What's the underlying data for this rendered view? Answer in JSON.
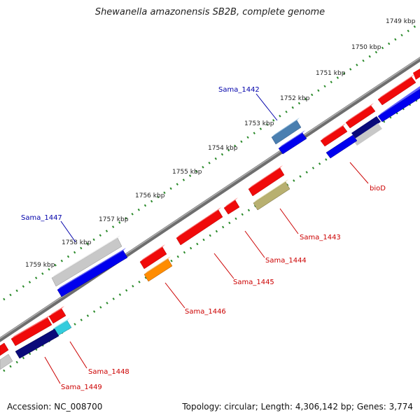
{
  "title": "Shewanella amazonensis SB2B, complete genome",
  "footer": {
    "accession": "Accession: NC_008700",
    "topology": "Topology: circular; Length: 4,306,142 bp; Genes: 3,774"
  },
  "ticks": [
    {
      "label": "1749 kbp"
    },
    {
      "label": "1750 kbp"
    },
    {
      "label": "1751 kbp"
    },
    {
      "label": "1752 kbp"
    },
    {
      "label": "1753 kbp"
    },
    {
      "label": "1754 kbp"
    },
    {
      "label": "1755 kbp"
    },
    {
      "label": "1756 kbp"
    },
    {
      "label": "1757 kbp"
    },
    {
      "label": "1758 kbp"
    },
    {
      "label": "1759 kbp"
    }
  ],
  "gene_labels": [
    {
      "id": "Sama_1442",
      "text": "Sama_1442",
      "color": "#0000aa"
    },
    {
      "id": "Sama_1447",
      "text": "Sama_1447",
      "color": "#0000aa"
    },
    {
      "id": "bioD",
      "text": "bioD",
      "color": "#cc0000"
    },
    {
      "id": "Sama_1443",
      "text": "Sama_1443",
      "color": "#cc0000"
    },
    {
      "id": "Sama_1444",
      "text": "Sama_1444",
      "color": "#cc0000"
    },
    {
      "id": "Sama_1445",
      "text": "Sama_1445",
      "color": "#cc0000"
    },
    {
      "id": "Sama_1446",
      "text": "Sama_1446",
      "color": "#cc0000"
    },
    {
      "id": "Sama_1448",
      "text": "Sama_1448",
      "color": "#cc0000"
    },
    {
      "id": "Sama_1449",
      "text": "Sama_1449",
      "color": "#cc0000"
    }
  ],
  "colors": {
    "backbone": "#888888",
    "forward_cds": "#ff0000",
    "reverse_cds": "#0000ee",
    "trna": "#4a7fb0",
    "other": "#c8c8c8",
    "dark_cds": "#0a0a7a",
    "orange_cds": "#ff8c00",
    "olive_cds": "#b8b070",
    "cyan_cds": "#33ccdd",
    "tick_dots": "#2a8a2a"
  }
}
